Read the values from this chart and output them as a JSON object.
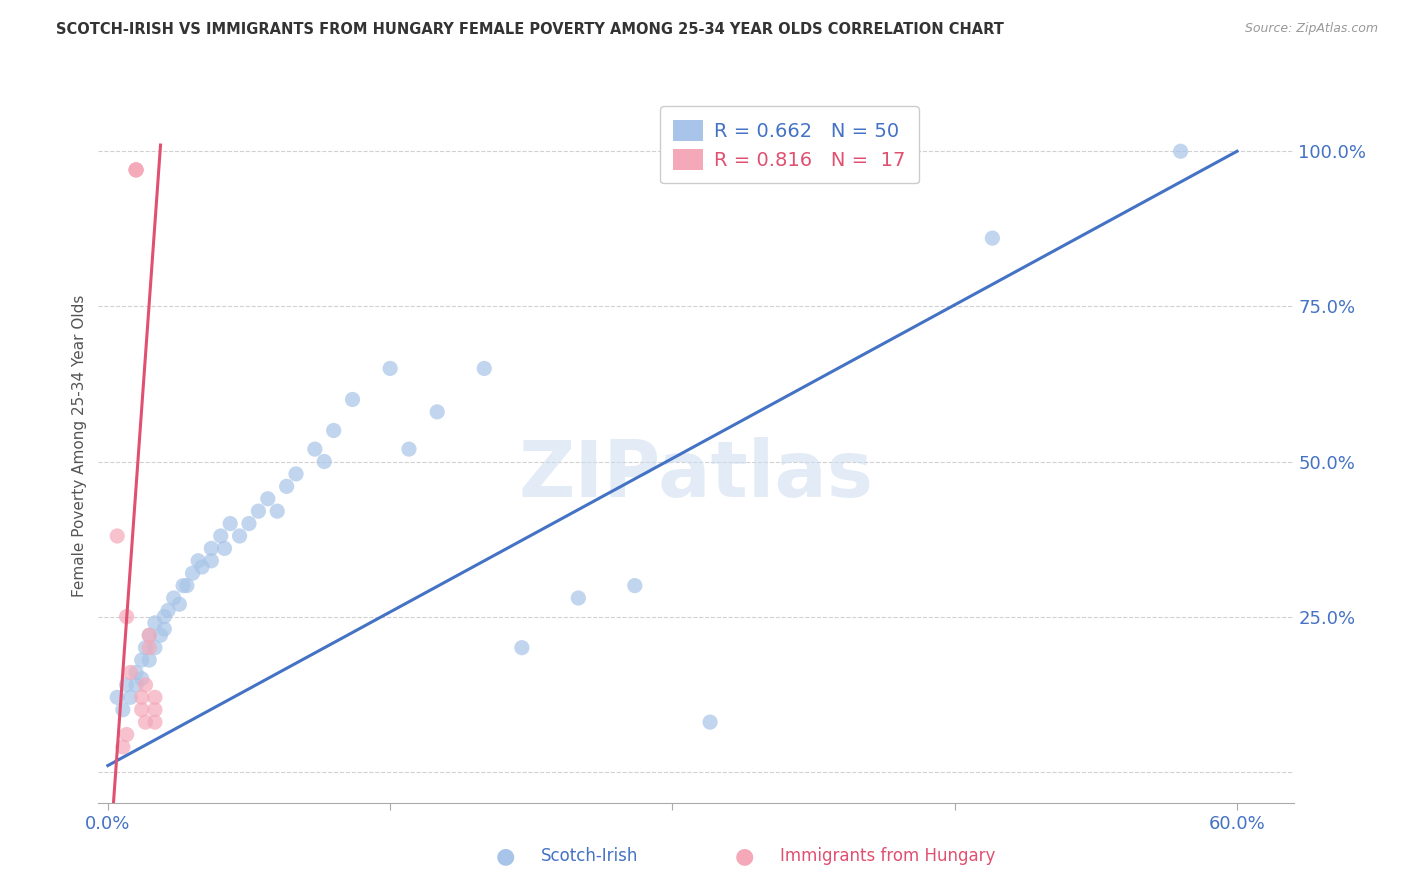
{
  "title": "SCOTCH-IRISH VS IMMIGRANTS FROM HUNGARY FEMALE POVERTY AMONG 25-34 YEAR OLDS CORRELATION CHART",
  "source": "Source: ZipAtlas.com",
  "ylabel_label": "Female Poverty Among 25-34 Year Olds",
  "y_ticks": [
    0.0,
    0.25,
    0.5,
    0.75,
    1.0
  ],
  "y_tick_labels": [
    "",
    "25.0%",
    "50.0%",
    "75.0%",
    "100.0%"
  ],
  "x_ticks": [
    0.0,
    0.15,
    0.3,
    0.45,
    0.6
  ],
  "x_tick_labels": [
    "0.0%",
    "",
    "",
    "",
    "60.0%"
  ],
  "blue_R": 0.662,
  "blue_N": 50,
  "pink_R": 0.816,
  "pink_N": 17,
  "blue_color": "#a8c4e8",
  "pink_color": "#f4a8b8",
  "blue_line_color": "#4472c4",
  "pink_line_color": "#e05070",
  "watermark": "ZIPatlas",
  "legend_label_blue": "Scotch-Irish",
  "legend_label_pink": "Immigrants from Hungary",
  "blue_scatter_x": [
    0.005,
    0.008,
    0.01,
    0.012,
    0.015,
    0.015,
    0.018,
    0.018,
    0.02,
    0.022,
    0.022,
    0.025,
    0.025,
    0.028,
    0.03,
    0.03,
    0.032,
    0.035,
    0.038,
    0.04,
    0.042,
    0.045,
    0.048,
    0.05,
    0.055,
    0.055,
    0.06,
    0.062,
    0.065,
    0.07,
    0.075,
    0.08,
    0.085,
    0.09,
    0.095,
    0.1,
    0.11,
    0.115,
    0.12,
    0.13,
    0.15,
    0.16,
    0.175,
    0.2,
    0.22,
    0.25,
    0.28,
    0.32,
    0.47,
    0.57
  ],
  "blue_scatter_y": [
    0.12,
    0.1,
    0.14,
    0.12,
    0.16,
    0.14,
    0.18,
    0.15,
    0.2,
    0.18,
    0.22,
    0.2,
    0.24,
    0.22,
    0.25,
    0.23,
    0.26,
    0.28,
    0.27,
    0.3,
    0.3,
    0.32,
    0.34,
    0.33,
    0.36,
    0.34,
    0.38,
    0.36,
    0.4,
    0.38,
    0.4,
    0.42,
    0.44,
    0.42,
    0.46,
    0.48,
    0.52,
    0.5,
    0.55,
    0.6,
    0.65,
    0.52,
    0.58,
    0.65,
    0.2,
    0.28,
    0.3,
    0.08,
    0.86,
    1.0
  ],
  "pink_scatter_x": [
    0.005,
    0.01,
    0.012,
    0.015,
    0.015,
    0.015,
    0.018,
    0.018,
    0.02,
    0.02,
    0.022,
    0.022,
    0.025,
    0.025,
    0.025,
    0.01,
    0.008
  ],
  "pink_scatter_y": [
    0.38,
    0.25,
    0.16,
    0.97,
    0.97,
    0.97,
    0.12,
    0.1,
    0.08,
    0.14,
    0.2,
    0.22,
    0.12,
    0.1,
    0.08,
    0.06,
    0.04
  ],
  "blue_line_x": [
    0.0,
    0.6
  ],
  "blue_line_y": [
    0.01,
    1.0
  ],
  "pink_line_x": [
    0.003,
    0.028
  ],
  "pink_line_y": [
    -0.05,
    1.01
  ],
  "xlim": [
    -0.005,
    0.63
  ],
  "ylim": [
    -0.05,
    1.1
  ]
}
